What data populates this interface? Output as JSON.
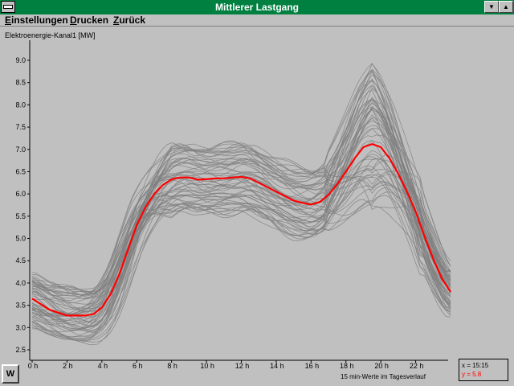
{
  "window": {
    "title": "Mittlerer Lastgang",
    "minimize_label": "▼",
    "maximize_label": "▲"
  },
  "menu": {
    "items": [
      {
        "label": "Einstellungen"
      },
      {
        "label": "Drucken"
      },
      {
        "label": "Zurück"
      }
    ]
  },
  "readout": {
    "x_label": "x = 15:15",
    "y_label": "y = 5.8",
    "x_color": "#000000",
    "y_color": "#ff0000"
  },
  "button_w": {
    "label": "W"
  },
  "colors": {
    "background": "#c0c0c0",
    "titlebar": "#008040",
    "mean_curve": "#ff0000",
    "sample_curves": "#808080"
  },
  "chart_data": {
    "type": "line",
    "title": "Elektroenergie-Kanal1 [MW]",
    "xlabel": "15 min-Werte im Tagesverlauf",
    "ylabel": "",
    "xlim": [
      0,
      24
    ],
    "ylim": [
      2.5,
      9.0
    ],
    "xticks": [
      0,
      2,
      4,
      6,
      8,
      10,
      12,
      14,
      16,
      18,
      20,
      22
    ],
    "xtick_labels": [
      "0 h",
      "2 h",
      "4 h",
      "6 h",
      "8 h",
      "10 h",
      "12 h",
      "14 h",
      "16 h",
      "18 h",
      "20 h",
      "22 h"
    ],
    "yticks": [
      2.5,
      3.0,
      3.5,
      4.0,
      4.5,
      5.0,
      5.5,
      6.0,
      6.5,
      7.0,
      7.5,
      8.0,
      8.5,
      9.0
    ],
    "ytick_labels": [
      "2.5",
      "3.0",
      "3.5",
      "4.0",
      "4.5",
      "5.0",
      "5.5",
      "6.0",
      "6.5",
      "7.0",
      "7.5",
      "8.0",
      "8.5",
      "9.0"
    ],
    "grid": false,
    "mean_series": {
      "x": [
        0,
        1,
        2,
        3,
        3.5,
        4,
        4.5,
        5,
        5.5,
        6,
        6.5,
        7,
        7.5,
        8,
        8.5,
        9,
        9.5,
        10,
        10.5,
        11,
        11.5,
        12,
        12.5,
        13,
        13.5,
        14,
        14.5,
        15,
        15.5,
        16,
        16.5,
        17,
        17.5,
        18,
        18.5,
        19,
        19.5,
        20,
        20.5,
        21,
        21.5,
        22,
        22.5,
        23,
        23.5,
        24
      ],
      "values": [
        3.65,
        3.4,
        3.27,
        3.27,
        3.3,
        3.45,
        3.75,
        4.2,
        4.75,
        5.3,
        5.7,
        6.0,
        6.2,
        6.33,
        6.37,
        6.37,
        6.32,
        6.33,
        6.35,
        6.35,
        6.37,
        6.38,
        6.35,
        6.25,
        6.15,
        6.05,
        5.95,
        5.85,
        5.8,
        5.76,
        5.82,
        5.98,
        6.22,
        6.5,
        6.8,
        7.05,
        7.12,
        7.05,
        6.8,
        6.45,
        6.05,
        5.6,
        5.05,
        4.55,
        4.1,
        3.8
      ]
    },
    "sample_count": 60
  }
}
